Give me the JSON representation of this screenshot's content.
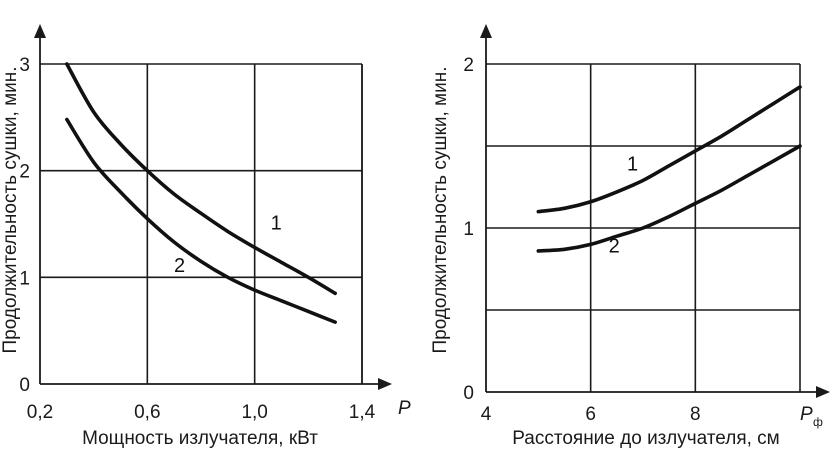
{
  "chart_data": [
    {
      "type": "line",
      "xlabel": "Мощность излучателя, кВт",
      "x_axis_symbol": "P",
      "ylabel": "Продолжительность сушки, мин.",
      "xlim": [
        0.2,
        1.4
      ],
      "ylim": [
        0,
        3
      ],
      "x_ticks": [
        0.2,
        0.6,
        1.0,
        1.4
      ],
      "x_tick_labels": [
        "0,2",
        "0,6",
        "1,0",
        "1,4"
      ],
      "y_ticks": [
        0,
        1,
        2,
        3
      ],
      "y_tick_labels": [
        "0",
        "1",
        "2",
        "3"
      ],
      "grid": true,
      "series": [
        {
          "name": "1",
          "x": [
            0.3,
            0.4,
            0.5,
            0.6,
            0.7,
            0.8,
            0.9,
            1.0,
            1.1,
            1.2,
            1.3
          ],
          "y": [
            3.0,
            2.55,
            2.25,
            2.0,
            1.78,
            1.6,
            1.43,
            1.28,
            1.14,
            1.0,
            0.85
          ]
        },
        {
          "name": "2",
          "x": [
            0.3,
            0.4,
            0.5,
            0.6,
            0.7,
            0.8,
            0.9,
            1.0,
            1.1,
            1.2,
            1.3
          ],
          "y": [
            2.48,
            2.08,
            1.8,
            1.55,
            1.33,
            1.15,
            1.0,
            0.88,
            0.78,
            0.68,
            0.58
          ]
        }
      ]
    },
    {
      "type": "line",
      "xlabel": "Расстояние до излучателя, см",
      "x_axis_symbol": "P",
      "x_axis_symbol_sub": "ф",
      "ylabel": "Продолжительность сушки, мин.",
      "xlim": [
        4,
        10
      ],
      "ylim": [
        0,
        2
      ],
      "x_ticks": [
        4,
        6,
        8
      ],
      "x_tick_labels": [
        "4",
        "6",
        "8"
      ],
      "y_ticks": [
        0,
        1,
        2
      ],
      "y_tick_labels": [
        "0",
        "1",
        "2"
      ],
      "grid": true,
      "series": [
        {
          "name": "1",
          "x": [
            5,
            5.5,
            6,
            6.5,
            7,
            7.5,
            8,
            8.5,
            9,
            9.5,
            10
          ],
          "y": [
            1.1,
            1.12,
            1.16,
            1.22,
            1.29,
            1.38,
            1.47,
            1.56,
            1.66,
            1.76,
            1.86
          ]
        },
        {
          "name": "2",
          "x": [
            5,
            5.5,
            6,
            6.5,
            7,
            7.5,
            8,
            8.5,
            9,
            9.5,
            10
          ],
          "y": [
            0.86,
            0.87,
            0.9,
            0.95,
            1.0,
            1.07,
            1.15,
            1.23,
            1.32,
            1.41,
            1.5
          ]
        }
      ]
    }
  ]
}
